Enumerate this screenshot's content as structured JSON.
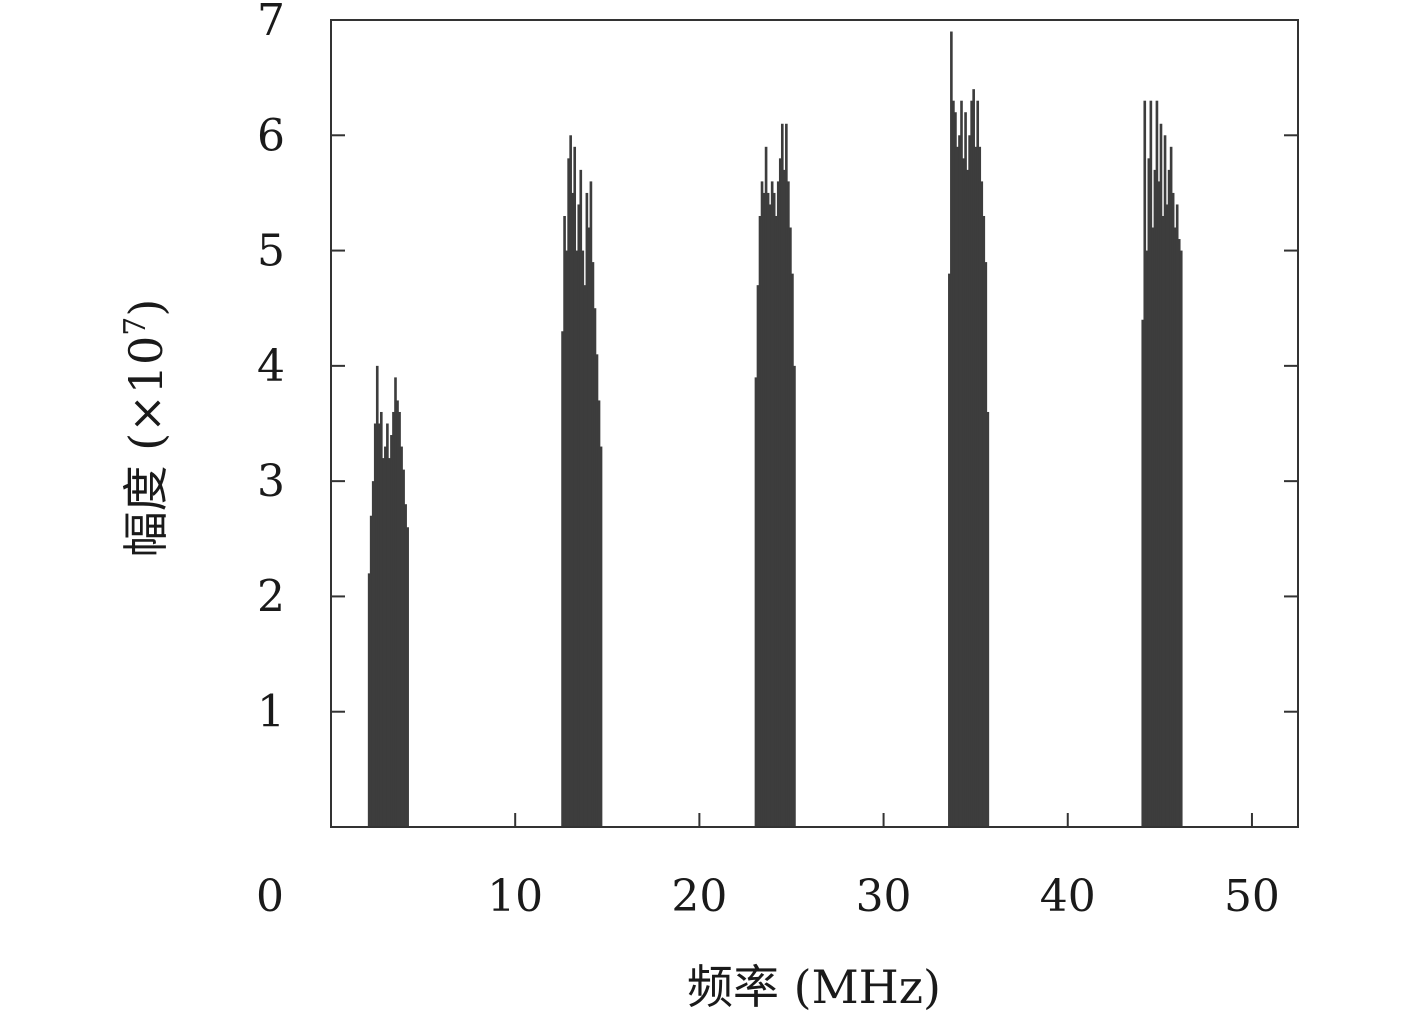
{
  "chart_data": {
    "type": "bar",
    "title": "",
    "xlabel": "频率 (MHz)",
    "ylabel": "幅度 (×10⁷)",
    "ylabel_parts": {
      "main": "幅度 (×10",
      "exp": "7",
      "close": ")"
    },
    "xlim": [
      0,
      52.5
    ],
    "ylim": [
      0,
      7
    ],
    "xticks": [
      0,
      10,
      20,
      30,
      40,
      50
    ],
    "yticks": [
      1,
      2,
      3,
      4,
      5,
      6,
      7
    ],
    "grid": false,
    "bar_color": "#3d3d3d",
    "bands": [
      {
        "name": "band-1",
        "center": 3.1,
        "width": 2.2,
        "peak": 4.05,
        "profile": [
          2.2,
          2.7,
          3.0,
          3.5,
          4.0,
          3.5,
          3.6,
          3.2,
          3.3,
          3.5,
          3.2,
          3.4,
          3.6,
          3.9,
          3.7,
          3.6,
          3.3,
          3.1,
          2.8,
          2.6
        ]
      },
      {
        "name": "band-2",
        "center": 13.6,
        "width": 2.2,
        "peak": 6.05,
        "profile": [
          4.3,
          5.3,
          5.0,
          5.8,
          6.0,
          5.5,
          5.9,
          5.0,
          5.4,
          5.7,
          5.0,
          4.7,
          5.5,
          5.2,
          5.6,
          4.9,
          4.5,
          4.1,
          3.7,
          3.3
        ]
      },
      {
        "name": "band-3",
        "center": 24.1,
        "width": 2.2,
        "peak": 6.12,
        "profile": [
          3.9,
          4.7,
          5.3,
          5.6,
          5.5,
          5.9,
          5.5,
          5.4,
          5.6,
          5.5,
          5.3,
          5.6,
          5.8,
          6.1,
          5.7,
          6.1,
          5.6,
          5.2,
          4.8,
          4.0
        ]
      },
      {
        "name": "band-4",
        "center": 34.6,
        "width": 2.2,
        "peak": 6.87,
        "profile": [
          4.8,
          6.9,
          6.3,
          6.2,
          5.9,
          6.0,
          6.3,
          5.8,
          6.2,
          5.7,
          6.0,
          6.3,
          6.4,
          5.9,
          6.3,
          5.9,
          5.6,
          5.3,
          4.9,
          3.6
        ]
      },
      {
        "name": "band-5",
        "center": 45.1,
        "width": 2.2,
        "peak": 6.35,
        "profile": [
          4.4,
          6.3,
          5.0,
          5.8,
          6.3,
          5.2,
          5.7,
          6.3,
          5.6,
          6.1,
          5.3,
          6.0,
          5.4,
          5.7,
          5.9,
          5.5,
          5.2,
          5.4,
          5.1,
          5.0
        ]
      }
    ]
  }
}
